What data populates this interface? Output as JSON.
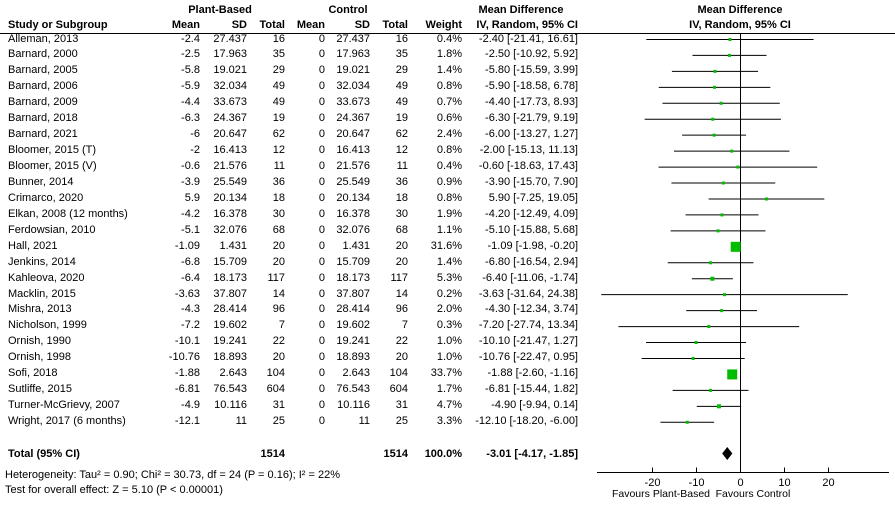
{
  "colors": {
    "square": "#00bd00",
    "diamond": "#000000",
    "line": "#000000"
  },
  "header": {
    "group_plant": "Plant-Based",
    "group_control": "Control",
    "md_left": "Mean Difference",
    "md_right": "Mean Difference",
    "study": "Study or Subgroup",
    "mean1": "Mean",
    "sd1": "SD",
    "total1": "Total",
    "mean2": "Mean",
    "sd2": "SD",
    "total2": "Total",
    "weight": "Weight",
    "iv_left": "IV, Random, 95% CI",
    "iv_right": "IV, Random, 95% CI"
  },
  "footnotes": {
    "heterogeneity": "Heterogeneity: Tau² = 0.90; Chi² = 30.73, df = 24 (P = 0.16); I² = 22%",
    "overall_effect": "Test for overall effect: Z = 5.10 (P < 0.00001)"
  },
  "chart_data": {
    "type": "forest",
    "effect_measure": "Mean Difference, IV, Random, 95% CI",
    "x_ticks": [
      -20,
      -10,
      0,
      10,
      20
    ],
    "xlim": [
      -32.5,
      34
    ],
    "favours_left": "Favours Plant-Based",
    "favours_right": "Favours Control",
    "studies": [
      {
        "name": "Alleman, 2013",
        "mean": "-2.4",
        "sd": "27.437",
        "total": "16",
        "c_mean": "0",
        "c_sd": "27.437",
        "c_total": "16",
        "weight": "0.4%",
        "w": 0.4,
        "ci": "-2.40 [-21.41, 16.61]",
        "est": -2.4,
        "lo": -21.41,
        "hi": 16.61
      },
      {
        "name": "Barnard, 2000",
        "mean": "-2.5",
        "sd": "17.963",
        "total": "35",
        "c_mean": "0",
        "c_sd": "17.963",
        "c_total": "35",
        "weight": "1.8%",
        "w": 1.8,
        "ci": "-2.50 [-10.92, 5.92]",
        "est": -2.5,
        "lo": -10.92,
        "hi": 5.92
      },
      {
        "name": "Barnard, 2005",
        "mean": "-5.8",
        "sd": "19.021",
        "total": "29",
        "c_mean": "0",
        "c_sd": "19.021",
        "c_total": "29",
        "weight": "1.4%",
        "w": 1.4,
        "ci": "-5.80 [-15.59, 3.99]",
        "est": -5.8,
        "lo": -15.59,
        "hi": 3.99
      },
      {
        "name": "Barnard, 2006",
        "mean": "-5.9",
        "sd": "32.034",
        "total": "49",
        "c_mean": "0",
        "c_sd": "32.034",
        "c_total": "49",
        "weight": "0.8%",
        "w": 0.8,
        "ci": "-5.90 [-18.58, 6.78]",
        "est": -5.9,
        "lo": -18.58,
        "hi": 6.78
      },
      {
        "name": "Barnard, 2009",
        "mean": "-4.4",
        "sd": "33.673",
        "total": "49",
        "c_mean": "0",
        "c_sd": "33.673",
        "c_total": "49",
        "weight": "0.7%",
        "w": 0.7,
        "ci": "-4.40 [-17.73, 8.93]",
        "est": -4.4,
        "lo": -17.73,
        "hi": 8.93
      },
      {
        "name": "Barnard, 2018",
        "mean": "-6.3",
        "sd": "24.367",
        "total": "19",
        "c_mean": "0",
        "c_sd": "24.367",
        "c_total": "19",
        "weight": "0.6%",
        "w": 0.6,
        "ci": "-6.30 [-21.79, 9.19]",
        "est": -6.3,
        "lo": -21.79,
        "hi": 9.19
      },
      {
        "name": "Barnard, 2021",
        "mean": "-6",
        "sd": "20.647",
        "total": "62",
        "c_mean": "0",
        "c_sd": "20.647",
        "c_total": "62",
        "weight": "2.4%",
        "w": 2.4,
        "ci": "-6.00 [-13.27, 1.27]",
        "est": -6.0,
        "lo": -13.27,
        "hi": 1.27
      },
      {
        "name": "Bloomer, 2015 (T)",
        "mean": "-2",
        "sd": "16.413",
        "total": "12",
        "c_mean": "0",
        "c_sd": "16.413",
        "c_total": "12",
        "weight": "0.8%",
        "w": 0.8,
        "ci": "-2.00 [-15.13, 11.13]",
        "est": -2.0,
        "lo": -15.13,
        "hi": 11.13
      },
      {
        "name": "Bloomer, 2015 (V)",
        "mean": "-0.6",
        "sd": "21.576",
        "total": "11",
        "c_mean": "0",
        "c_sd": "21.576",
        "c_total": "11",
        "weight": "0.4%",
        "w": 0.4,
        "ci": "-0.60 [-18.63, 17.43]",
        "est": -0.6,
        "lo": -18.63,
        "hi": 17.43
      },
      {
        "name": "Bunner, 2014",
        "mean": "-3.9",
        "sd": "25.549",
        "total": "36",
        "c_mean": "0",
        "c_sd": "25.549",
        "c_total": "36",
        "weight": "0.9%",
        "w": 0.9,
        "ci": "-3.90 [-15.70, 7.90]",
        "est": -3.9,
        "lo": -15.7,
        "hi": 7.9
      },
      {
        "name": "Crimarco, 2020",
        "mean": "5.9",
        "sd": "20.134",
        "total": "18",
        "c_mean": "0",
        "c_sd": "20.134",
        "c_total": "18",
        "weight": "0.8%",
        "w": 0.8,
        "ci": "5.90 [-7.25, 19.05]",
        "est": 5.9,
        "lo": -7.25,
        "hi": 19.05
      },
      {
        "name": "Elkan, 2008 (12 months)",
        "mean": "-4.2",
        "sd": "16.378",
        "total": "30",
        "c_mean": "0",
        "c_sd": "16.378",
        "c_total": "30",
        "weight": "1.9%",
        "w": 1.9,
        "ci": "-4.20 [-12.49, 4.09]",
        "est": -4.2,
        "lo": -12.49,
        "hi": 4.09
      },
      {
        "name": "Ferdowsian, 2010",
        "mean": "-5.1",
        "sd": "32.076",
        "total": "68",
        "c_mean": "0",
        "c_sd": "32.076",
        "c_total": "68",
        "weight": "1.1%",
        "w": 1.1,
        "ci": "-5.10 [-15.88, 5.68]",
        "est": -5.1,
        "lo": -15.88,
        "hi": 5.68
      },
      {
        "name": "Hall, 2021",
        "mean": "-1.09",
        "sd": "1.431",
        "total": "20",
        "c_mean": "0",
        "c_sd": "1.431",
        "c_total": "20",
        "weight": "31.6%",
        "w": 31.6,
        "ci": "-1.09 [-1.98, -0.20]",
        "est": -1.09,
        "lo": -1.98,
        "hi": -0.2
      },
      {
        "name": "Jenkins, 2014",
        "mean": "-6.8",
        "sd": "15.709",
        "total": "20",
        "c_mean": "0",
        "c_sd": "15.709",
        "c_total": "20",
        "weight": "1.4%",
        "w": 1.4,
        "ci": "-6.80 [-16.54, 2.94]",
        "est": -6.8,
        "lo": -16.54,
        "hi": 2.94
      },
      {
        "name": "Kahleova, 2020",
        "mean": "-6.4",
        "sd": "18.173",
        "total": "117",
        "c_mean": "0",
        "c_sd": "18.173",
        "c_total": "117",
        "weight": "5.3%",
        "w": 5.3,
        "ci": "-6.40 [-11.06, -1.74]",
        "est": -6.4,
        "lo": -11.06,
        "hi": -1.74
      },
      {
        "name": "Macklin, 2015",
        "mean": "-3.63",
        "sd": "37.807",
        "total": "14",
        "c_mean": "0",
        "c_sd": "37.807",
        "c_total": "14",
        "weight": "0.2%",
        "w": 0.2,
        "ci": "-3.63 [-31.64, 24.38]",
        "est": -3.63,
        "lo": -31.64,
        "hi": 24.38
      },
      {
        "name": "Mishra, 2013",
        "mean": "-4.3",
        "sd": "28.414",
        "total": "96",
        "c_mean": "0",
        "c_sd": "28.414",
        "c_total": "96",
        "weight": "2.0%",
        "w": 2.0,
        "ci": "-4.30 [-12.34, 3.74]",
        "est": -4.3,
        "lo": -12.34,
        "hi": 3.74
      },
      {
        "name": "Nicholson, 1999",
        "mean": "-7.2",
        "sd": "19.602",
        "total": "7",
        "c_mean": "0",
        "c_sd": "19.602",
        "c_total": "7",
        "weight": "0.3%",
        "w": 0.3,
        "ci": "-7.20 [-27.74, 13.34]",
        "est": -7.2,
        "lo": -27.74,
        "hi": 13.34
      },
      {
        "name": "Ornish, 1990",
        "mean": "-10.1",
        "sd": "19.241",
        "total": "22",
        "c_mean": "0",
        "c_sd": "19.241",
        "c_total": "22",
        "weight": "1.0%",
        "w": 1.0,
        "ci": "-10.10 [-21.47, 1.27]",
        "est": -10.1,
        "lo": -21.47,
        "hi": 1.27
      },
      {
        "name": "Ornish, 1998",
        "mean": "-10.76",
        "sd": "18.893",
        "total": "20",
        "c_mean": "0",
        "c_sd": "18.893",
        "c_total": "20",
        "weight": "1.0%",
        "w": 1.0,
        "ci": "-10.76 [-22.47, 0.95]",
        "est": -10.76,
        "lo": -22.47,
        "hi": 0.95
      },
      {
        "name": "Sofi, 2018",
        "mean": "-1.88",
        "sd": "2.643",
        "total": "104",
        "c_mean": "0",
        "c_sd": "2.643",
        "c_total": "104",
        "weight": "33.7%",
        "w": 33.7,
        "ci": "-1.88 [-2.60, -1.16]",
        "est": -1.88,
        "lo": -2.6,
        "hi": -1.16
      },
      {
        "name": "Sutliffe, 2015",
        "mean": "-6.81",
        "sd": "76.543",
        "total": "604",
        "c_mean": "0",
        "c_sd": "76.543",
        "c_total": "604",
        "weight": "1.7%",
        "w": 1.7,
        "ci": "-6.81 [-15.44, 1.82]",
        "est": -6.81,
        "lo": -15.44,
        "hi": 1.82
      },
      {
        "name": "Turner-McGrievy, 2007",
        "mean": "-4.9",
        "sd": "10.116",
        "total": "31",
        "c_mean": "0",
        "c_sd": "10.116",
        "c_total": "31",
        "weight": "4.7%",
        "w": 4.7,
        "ci": "-4.90 [-9.94, 0.14]",
        "est": -4.9,
        "lo": -9.94,
        "hi": 0.14
      },
      {
        "name": "Wright, 2017 (6 months)",
        "mean": "-12.1",
        "sd": "11",
        "total": "25",
        "c_mean": "0",
        "c_sd": "11",
        "c_total": "25",
        "weight": "3.3%",
        "w": 3.3,
        "ci": "-12.10 [-18.20, -6.00]",
        "est": -12.1,
        "lo": -18.2,
        "hi": -6.0
      }
    ],
    "total": {
      "name": "Total (95% CI)",
      "total": "1514",
      "c_total": "1514",
      "weight": "100.0%",
      "ci": "-3.01 [-4.17, -1.85]",
      "est": -3.01,
      "lo": -4.17,
      "hi": -1.85
    }
  }
}
